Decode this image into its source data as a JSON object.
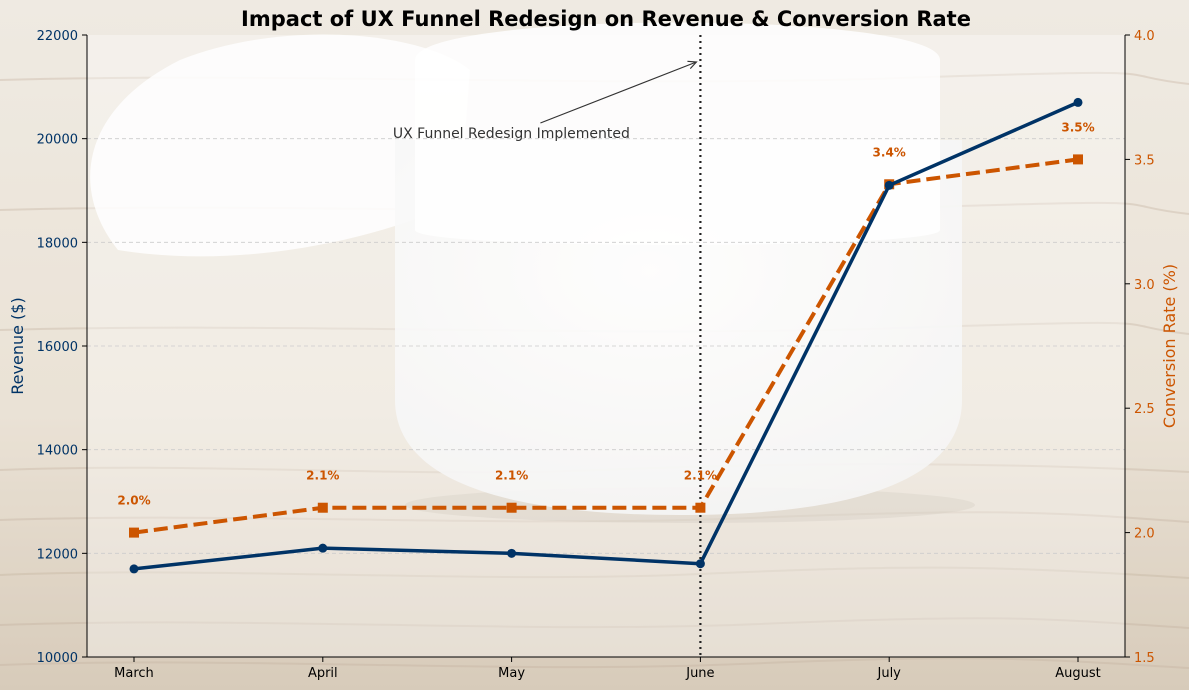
{
  "colors": {
    "revenue": "#003366",
    "conversion": "#cc5500",
    "annotation": "#333333",
    "title": "#000000",
    "grid": "#cccccc"
  },
  "chart_data": {
    "type": "line",
    "title": "Impact of UX Funnel Redesign on Revenue & Conversion Rate",
    "categories": [
      "March",
      "April",
      "May",
      "June",
      "July",
      "August"
    ],
    "series": [
      {
        "name": "Revenue ($)",
        "axis": "left",
        "values": [
          11700,
          12100,
          12000,
          11800,
          19100,
          20700
        ],
        "style": "solid",
        "marker": "circle"
      },
      {
        "name": "Conversion Rate (%)",
        "axis": "right",
        "values": [
          2.0,
          2.1,
          2.1,
          2.1,
          3.4,
          3.5
        ],
        "style": "dashed",
        "marker": "square",
        "data_labels": [
          "2.0%",
          "2.1%",
          "2.1%",
          "2.1%",
          "3.4%",
          "3.5%"
        ]
      }
    ],
    "y_left": {
      "label": "Revenue ($)",
      "range": [
        10000,
        22000
      ],
      "ticks": [
        "10000",
        "12000",
        "14000",
        "16000",
        "18000",
        "20000",
        "22000"
      ]
    },
    "y_right": {
      "label": "Conversion Rate (%)",
      "range": [
        1.5,
        4.0
      ],
      "ticks": [
        "1.5",
        "2.0",
        "2.5",
        "3.0",
        "3.5",
        "4.0"
      ]
    },
    "grid": true,
    "event": {
      "category": "June",
      "label": "UX Funnel Redesign Implemented"
    }
  }
}
